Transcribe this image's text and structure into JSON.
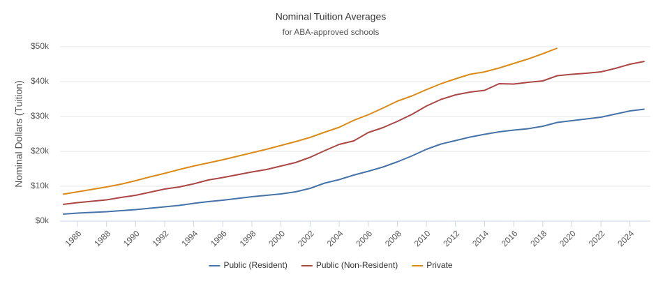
{
  "chart_data": {
    "type": "line",
    "title": "Nominal Tuition Averages",
    "subtitle": "for ABA-approved schools",
    "y_label": "Nominal Dollars (Tuition)",
    "x": [
      1985,
      1986,
      1987,
      1988,
      1989,
      1990,
      1991,
      1992,
      1993,
      1994,
      1995,
      1996,
      1997,
      1998,
      1999,
      2000,
      2001,
      2002,
      2003,
      2004,
      2005,
      2006,
      2007,
      2008,
      2009,
      2010,
      2011,
      2012,
      2013,
      2014,
      2015,
      2016,
      2017,
      2018,
      2019,
      2020,
      2021,
      2022,
      2023,
      2024,
      2025
    ],
    "series": [
      {
        "name": "Public (Resident)",
        "color": "#4572a7",
        "values": [
          2000,
          2300,
          2500,
          2700,
          3000,
          3300,
          3700,
          4100,
          4500,
          5100,
          5600,
          6000,
          6500,
          7000,
          7400,
          7800,
          8400,
          9400,
          10900,
          11900,
          13200,
          14300,
          15500,
          17000,
          18700,
          20600,
          22100,
          23100,
          24100,
          24900,
          25600,
          26100,
          26500,
          27200,
          28300,
          28800,
          29300,
          29800,
          30700,
          31600,
          32100
        ]
      },
      {
        "name": "Public (Non-Resident)",
        "color": "#aa4643",
        "values": [
          4800,
          5300,
          5700,
          6100,
          6800,
          7400,
          8300,
          9200,
          9800,
          10700,
          11800,
          12500,
          13300,
          14100,
          14800,
          15800,
          16800,
          18300,
          20200,
          22000,
          23000,
          25400,
          26800,
          28600,
          30600,
          33000,
          34900,
          36200,
          37000,
          37500,
          39400,
          39300,
          39800,
          40200,
          41700,
          42100,
          42400,
          42800,
          43800,
          45000,
          45800
        ]
      },
      {
        "name": "Private",
        "color": "#db8a16",
        "values": [
          7700,
          8400,
          9100,
          9800,
          10600,
          11600,
          12700,
          13700,
          14800,
          15800,
          16700,
          17600,
          18600,
          19600,
          20600,
          21700,
          22800,
          24000,
          25500,
          26900,
          28900,
          30500,
          32400,
          34400,
          35900,
          37700,
          39400,
          40800,
          42100,
          42800,
          43900,
          45200,
          46500,
          48000,
          49600,
          null,
          null,
          null,
          null,
          null,
          null
        ]
      }
    ],
    "xlim": [
      1984.8,
      2025.4
    ],
    "xticks": [
      1986,
      1988,
      1990,
      1992,
      1994,
      1996,
      1998,
      2000,
      2002,
      2004,
      2006,
      2008,
      2010,
      2012,
      2014,
      2016,
      2018,
      2020,
      2022,
      2024
    ],
    "ylim": [
      0,
      50000
    ],
    "yticks": [
      {
        "value": 0,
        "label": "$0k"
      },
      {
        "value": 10000,
        "label": "$10k"
      },
      {
        "value": 20000,
        "label": "$20k"
      },
      {
        "value": 30000,
        "label": "$30k"
      },
      {
        "value": 40000,
        "label": "$40k"
      },
      {
        "value": 50000,
        "label": "$50k"
      }
    ],
    "grid": true,
    "legend": "bottom"
  }
}
